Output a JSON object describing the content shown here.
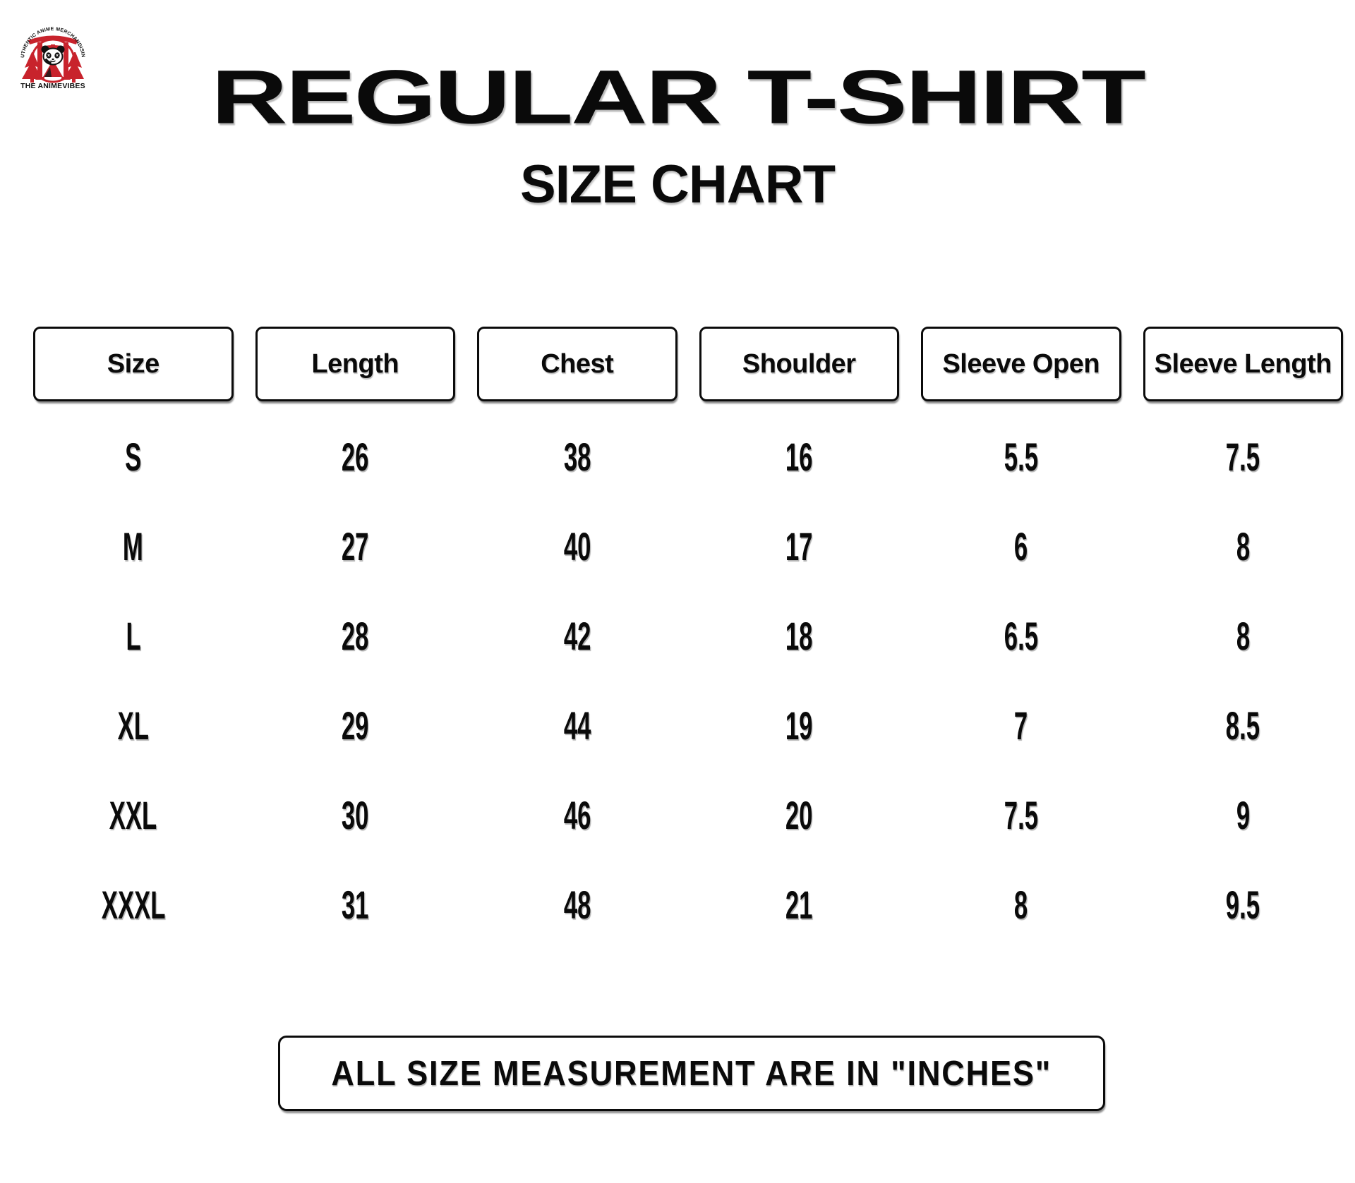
{
  "logo": {
    "arc_text": "AUTHENTIC ANIME MERCHANDISING",
    "brand": "THE ANIMEVIBES",
    "accent_color": "#c8232c",
    "ink_color": "#111111"
  },
  "header": {
    "title": "REGULAR T-SHIRT",
    "subtitle": "SIZE CHART"
  },
  "table": {
    "columns": [
      "Size",
      "Length",
      "Chest",
      "Shoulder",
      "Sleeve Open",
      "Sleeve Length"
    ],
    "rows": [
      [
        "S",
        "26",
        "38",
        "16",
        "5.5",
        "7.5"
      ],
      [
        "M",
        "27",
        "40",
        "17",
        "6",
        "8"
      ],
      [
        "L",
        "28",
        "42",
        "18",
        "6.5",
        "8"
      ],
      [
        "XL",
        "29",
        "44",
        "19",
        "7",
        "8.5"
      ],
      [
        "XXL",
        "30",
        "46",
        "20",
        "7.5",
        "9"
      ],
      [
        "XXXL",
        "31",
        "48",
        "21",
        "8",
        "9.5"
      ]
    ],
    "units": "inches"
  },
  "footnote": "ALL SIZE MEASUREMENT ARE IN \"INCHES\""
}
